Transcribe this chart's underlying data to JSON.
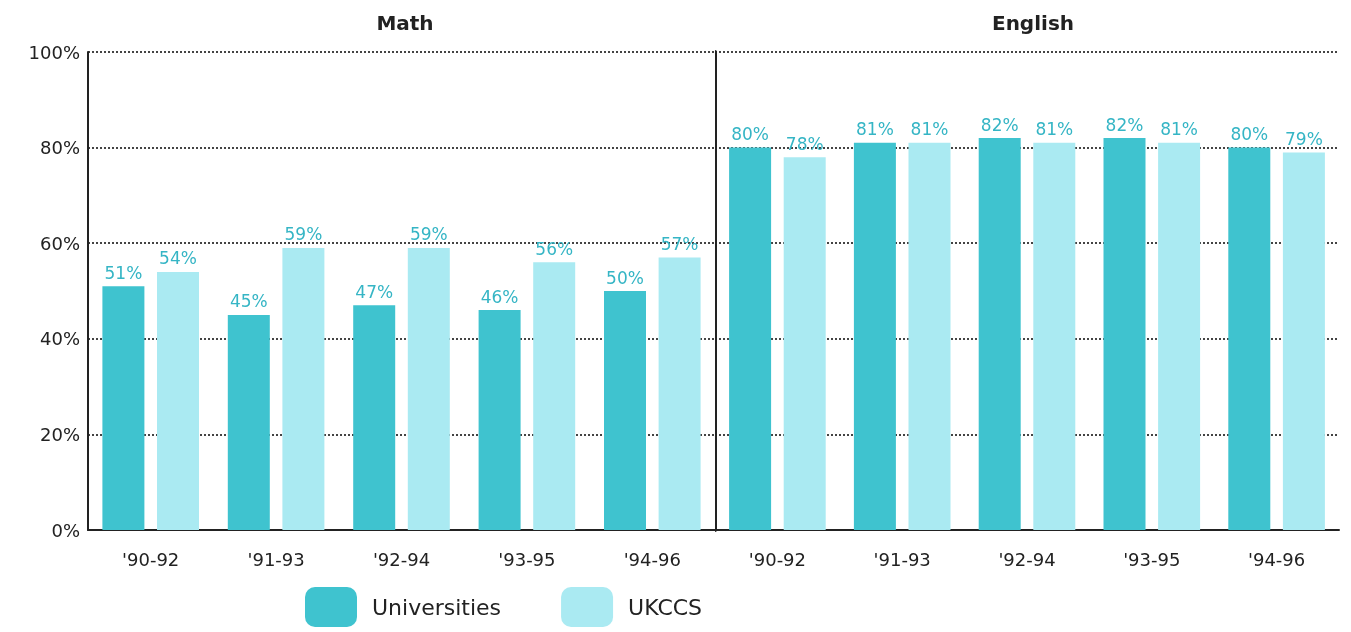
{
  "chart_data": [
    {
      "type": "bar",
      "title": "Math",
      "categories": [
        "'90-92",
        "'91-93",
        "'92-94",
        "'93-95",
        "'94-96"
      ],
      "series": [
        {
          "name": "Universities",
          "color": "#3fc3cf",
          "values": [
            51,
            45,
            47,
            46,
            50
          ],
          "value_labels": [
            "51%",
            "45%",
            "47%",
            "46%",
            "50%"
          ]
        },
        {
          "name": "UKCCS",
          "color": "#aaeaf2",
          "values": [
            54,
            59,
            59,
            56,
            57
          ],
          "value_labels": [
            "54%",
            "59%",
            "59%",
            "56%",
            "57%"
          ]
        }
      ],
      "ylim": [
        0,
        100
      ],
      "yticks": [
        {
          "value": 0,
          "label": "0%"
        },
        {
          "value": 20,
          "label": "20%"
        },
        {
          "value": 40,
          "label": "40%"
        },
        {
          "value": 60,
          "label": "60%"
        },
        {
          "value": 80,
          "label": "80%"
        },
        {
          "value": 100,
          "label": "100%"
        }
      ],
      "grid": "y",
      "legend": "bottom"
    },
    {
      "type": "bar",
      "title": "English",
      "categories": [
        "'90-92",
        "'91-93",
        "'92-94",
        "'93-95",
        "'94-96"
      ],
      "series": [
        {
          "color": "#3fc3cf",
          "values": [
            80,
            81,
            82,
            82,
            80
          ],
          "value_labels": [
            "80%",
            "81%",
            "82%",
            "82%",
            "80%"
          ]
        },
        {
          "color": "#aaeaf2",
          "values": [
            78,
            81,
            81,
            81,
            79
          ],
          "value_labels": [
            "78%",
            "81%",
            "81%",
            "81%",
            "79%"
          ]
        }
      ],
      "ylim": [
        0,
        100
      ],
      "yticks": [
        0,
        20,
        40,
        60,
        80,
        100
      ],
      "grid": "y",
      "tick_labels": "x"
    }
  ]
}
